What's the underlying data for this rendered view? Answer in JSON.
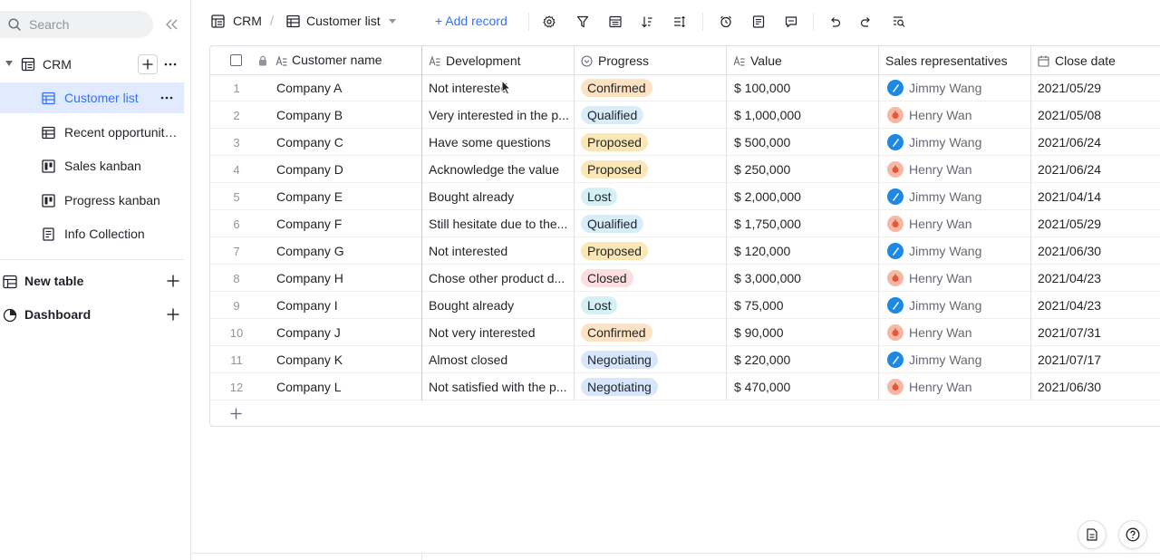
{
  "sidebar": {
    "search_placeholder": "Search",
    "base_name": "CRM",
    "items": [
      {
        "label": "Customer list",
        "icon": "grid-icon",
        "active": true
      },
      {
        "label": "Recent opportunities",
        "icon": "grid-icon",
        "active": false
      },
      {
        "label": "Sales kanban",
        "icon": "kanban-icon",
        "active": false
      },
      {
        "label": "Progress kanban",
        "icon": "kanban-icon",
        "active": false
      },
      {
        "label": "Info Collection",
        "icon": "form-icon",
        "active": false
      }
    ],
    "sections": [
      {
        "label": "New table",
        "icon": "table-icon"
      },
      {
        "label": "Dashboard",
        "icon": "dashboard-icon"
      }
    ]
  },
  "toolbar": {
    "base_name": "CRM",
    "breadcrumb_separator": "/",
    "view_name": "Customer list",
    "add_record_label": "+ Add record"
  },
  "table": {
    "columns": [
      {
        "label": "Customer name",
        "icon": "text-field-icon"
      },
      {
        "label": "Development",
        "icon": "text-field-icon"
      },
      {
        "label": "Progress",
        "icon": "single-select-icon"
      },
      {
        "label": "Value",
        "icon": "text-field-icon"
      },
      {
        "label": "Sales representatives",
        "icon": ""
      },
      {
        "label": "Close date",
        "icon": "calendar-icon"
      }
    ],
    "rows": [
      {
        "num": "1",
        "name": "Company A",
        "dev": "Not interested",
        "progress": "Confirmed",
        "value": "$ 100,000",
        "rep": "Jimmy Wang",
        "date": "2021/05/29"
      },
      {
        "num": "2",
        "name": "Company B",
        "dev": "Very interested in the p...",
        "progress": "Qualified",
        "value": "$ 1,000,000",
        "rep": "Henry Wan",
        "date": "2021/05/08"
      },
      {
        "num": "3",
        "name": "Company C",
        "dev": "Have some questions",
        "progress": "Proposed",
        "value": "$ 500,000",
        "rep": "Jimmy Wang",
        "date": "2021/06/24"
      },
      {
        "num": "4",
        "name": "Company D",
        "dev": "Acknowledge the value",
        "progress": "Proposed",
        "value": "$ 250,000",
        "rep": "Henry Wan",
        "date": "2021/06/24"
      },
      {
        "num": "5",
        "name": "Company E",
        "dev": "Bought already",
        "progress": "Lost",
        "value": "$ 2,000,000",
        "rep": "Jimmy Wang",
        "date": "2021/04/14"
      },
      {
        "num": "6",
        "name": "Company F",
        "dev": "Still hesitate due to the...",
        "progress": "Qualified",
        "value": "$ 1,750,000",
        "rep": "Henry Wan",
        "date": "2021/05/29"
      },
      {
        "num": "7",
        "name": "Company G",
        "dev": "Not interested",
        "progress": "Proposed",
        "value": "$ 120,000",
        "rep": "Jimmy Wang",
        "date": "2021/06/30"
      },
      {
        "num": "8",
        "name": "Company H",
        "dev": "Chose other product d...",
        "progress": "Closed",
        "value": "$ 3,000,000",
        "rep": "Henry Wan",
        "date": "2021/04/23"
      },
      {
        "num": "9",
        "name": "Company I",
        "dev": "Bought already",
        "progress": "Lost",
        "value": "$ 75,000",
        "rep": "Jimmy Wang",
        "date": "2021/04/23"
      },
      {
        "num": "10",
        "name": "Company J",
        "dev": "Not very interested",
        "progress": "Confirmed",
        "value": "$ 90,000",
        "rep": "Henry Wan",
        "date": "2021/07/31"
      },
      {
        "num": "11",
        "name": "Company K",
        "dev": "Almost closed",
        "progress": "Negotiating",
        "value": "$ 220,000",
        "rep": "Jimmy Wang",
        "date": "2021/07/17"
      },
      {
        "num": "12",
        "name": "Company L",
        "dev": "Not satisfied with the p...",
        "progress": "Negotiating",
        "value": "$ 470,000",
        "rep": "Henry Wan",
        "date": "2021/06/30"
      }
    ]
  },
  "tag_colors": {
    "Confirmed": "#fde2c4",
    "Qualified": "#d7eefa",
    "Proposed": "#fbe7b6",
    "Lost": "#d4f0f4",
    "Closed": "#fcdede",
    "Negotiating": "#d8e6fb"
  },
  "rep_colors": {
    "Jimmy Wang": "#1e88e5",
    "Henry Wan": "#f6b8a4"
  },
  "accent_color": "#3370ff"
}
